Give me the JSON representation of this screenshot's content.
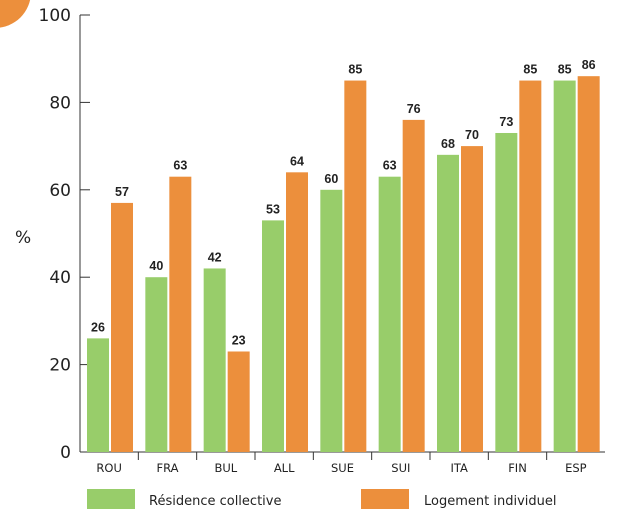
{
  "chart_data": {
    "type": "bar",
    "ylabel": "%",
    "ylim": [
      0,
      100
    ],
    "yticks": [
      "0",
      "20",
      "40",
      "60",
      "80",
      "100"
    ],
    "categories": [
      "ROU",
      "FRA",
      "BUL",
      "ALL",
      "SUE",
      "SUI",
      "ITA",
      "FIN",
      "ESP"
    ],
    "series": [
      {
        "name": "Résidence collective",
        "color": "#98cd6a",
        "values": [
          26,
          40,
          42,
          53,
          60,
          63,
          68,
          73,
          85
        ]
      },
      {
        "name": "Logement individuel",
        "color": "#ec8f3c",
        "values": [
          57,
          63,
          23,
          64,
          85,
          76,
          70,
          85,
          86
        ]
      }
    ],
    "legend_position": "bottom",
    "grid": false
  },
  "decor": {
    "corner_circle_color": "#ec8f3c",
    "axis_color": "#333333"
  }
}
